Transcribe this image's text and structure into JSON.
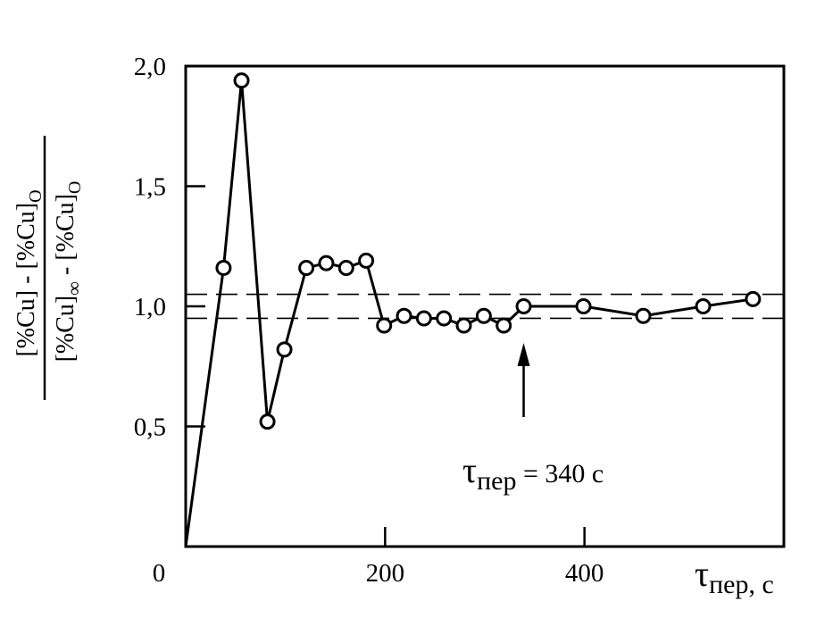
{
  "chart_data": {
    "type": "line",
    "title": "",
    "xlabel": {
      "symbol": "τ",
      "subscript": "пер",
      "suffix": ", с"
    },
    "ylabel": {
      "numerator": "[%Cu] - [%Cu]",
      "numerator_sub": "O",
      "denominator": "[%Cu]",
      "denominator_sub1": "∞",
      "denominator_mid": " - [%Cu]",
      "denominator_sub2": "O"
    },
    "xlim": [
      0,
      600
    ],
    "ylim": [
      0,
      2.0
    ],
    "x_ticks": [
      {
        "value": 0,
        "label": "0"
      },
      {
        "value": 200,
        "label": "200"
      },
      {
        "value": 400,
        "label": "400"
      }
    ],
    "y_ticks": [
      {
        "value": 0.5,
        "label": "0,5"
      },
      {
        "value": 1.0,
        "label": "1,0"
      },
      {
        "value": 1.5,
        "label": "1,5"
      },
      {
        "value": 2.0,
        "label": "2,0"
      }
    ],
    "grid": false,
    "series": [
      {
        "marker": "open-circle",
        "x": [
          0,
          38,
          56,
          82,
          99,
          121,
          141,
          161,
          181,
          199,
          219,
          239,
          259,
          279,
          299,
          319,
          339,
          399,
          459,
          519,
          569
        ],
        "y": [
          0,
          1.16,
          1.94,
          0.52,
          0.82,
          1.16,
          1.18,
          1.16,
          1.19,
          0.92,
          0.96,
          0.95,
          0.95,
          0.92,
          0.96,
          0.92,
          1.0,
          1.0,
          0.96,
          1.0,
          1.03
        ]
      }
    ],
    "reference_lines": [
      {
        "type": "horizontal",
        "y": 1.05,
        "style": "dashed"
      },
      {
        "type": "horizontal",
        "y": 0.95,
        "style": "dashed"
      }
    ],
    "annotation": {
      "arrow_x": 339,
      "symbol": "τ",
      "subscript": "пер",
      "text": " = 340 с"
    }
  }
}
